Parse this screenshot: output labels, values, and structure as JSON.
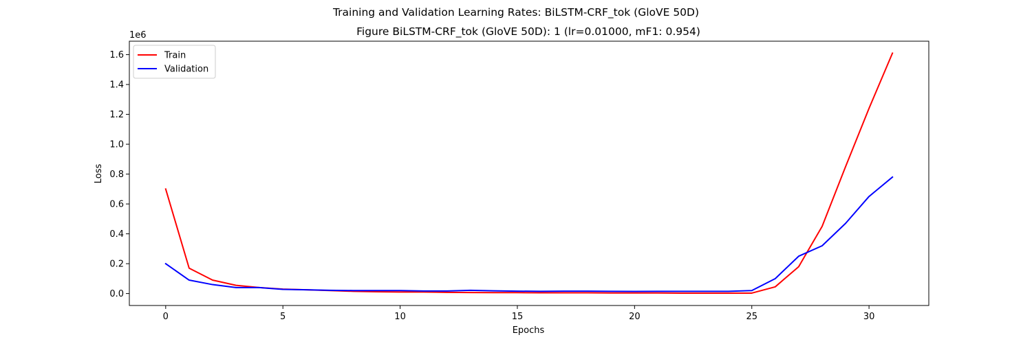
{
  "chart_data": {
    "type": "line",
    "suptitle": "Training and Validation Learning Rates: BiLSTM-CRF_tok (GloVE 50D)",
    "title": "Figure BiLSTM-CRF_tok (GloVE 50D): 1 (lr=0.01000, mF1: 0.954)",
    "xlabel": "Epochs",
    "ylabel": "Loss",
    "y_offset_text": "1e6",
    "xlim": [
      -1.55,
      32.55
    ],
    "ylim": [
      -0.08,
      1.69
    ],
    "x_ticks": [
      0,
      5,
      10,
      15,
      20,
      25,
      30
    ],
    "y_ticks": [
      0.0,
      0.2,
      0.4,
      0.6,
      0.8,
      1.0,
      1.2,
      1.4,
      1.6
    ],
    "y_tick_labels": [
      "0.0",
      "0.2",
      "0.4",
      "0.6",
      "0.8",
      "1.0",
      "1.2",
      "1.4",
      "1.6"
    ],
    "legend_position": "upper-left",
    "x": [
      0,
      1,
      2,
      3,
      4,
      5,
      6,
      7,
      8,
      9,
      10,
      11,
      12,
      13,
      14,
      15,
      16,
      17,
      18,
      19,
      20,
      21,
      22,
      23,
      24,
      25,
      26,
      27,
      28,
      29,
      30,
      31
    ],
    "series": [
      {
        "name": "Train",
        "color": "#ff0000",
        "values": [
          0.7,
          0.17,
          0.09,
          0.055,
          0.04,
          0.03,
          0.025,
          0.02,
          0.015,
          0.012,
          0.01,
          0.01,
          0.008,
          0.007,
          0.006,
          0.006,
          0.005,
          0.005,
          0.005,
          0.004,
          0.004,
          0.004,
          0.003,
          0.003,
          0.003,
          0.003,
          0.045,
          0.18,
          0.45,
          0.85,
          1.24,
          1.61
        ]
      },
      {
        "name": "Validation",
        "color": "#0000ff",
        "values": [
          0.2,
          0.09,
          0.06,
          0.04,
          0.04,
          0.028,
          0.025,
          0.022,
          0.02,
          0.02,
          0.02,
          0.017,
          0.017,
          0.022,
          0.018,
          0.016,
          0.015,
          0.016,
          0.016,
          0.015,
          0.014,
          0.015,
          0.015,
          0.015,
          0.015,
          0.02,
          0.1,
          0.25,
          0.32,
          0.47,
          0.65,
          0.78
        ]
      }
    ]
  }
}
